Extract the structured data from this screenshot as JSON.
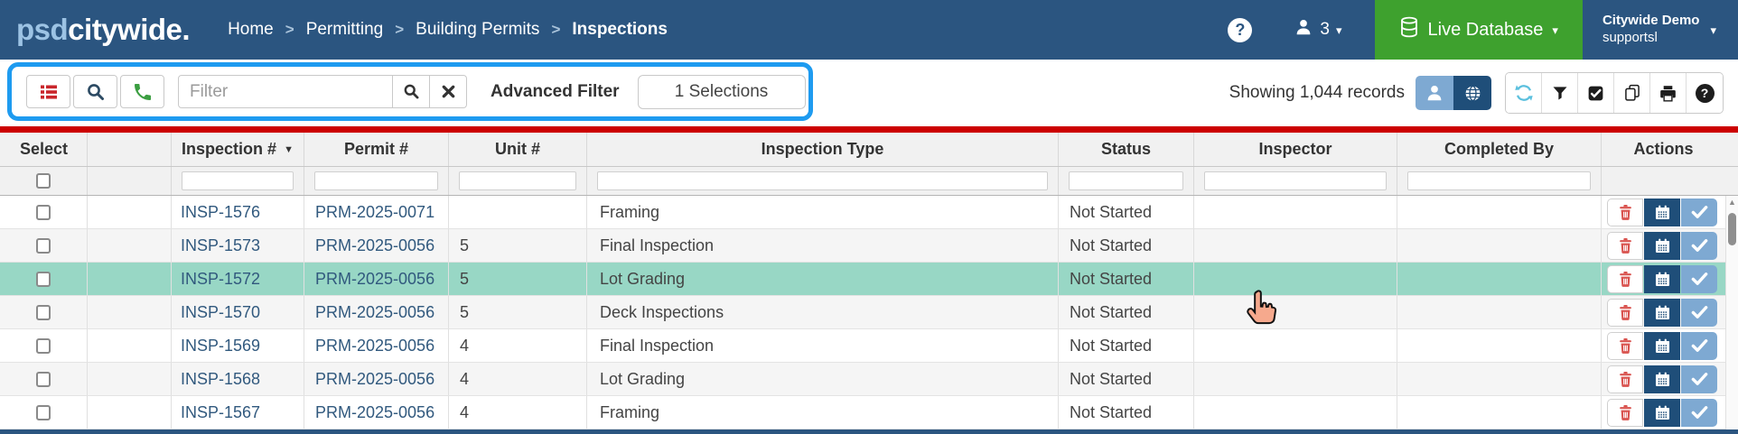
{
  "topbar": {
    "logo": {
      "prefix": "psd",
      "suffix": "citywide",
      "dot": "."
    },
    "breadcrumb": [
      {
        "label": "Home",
        "current": false
      },
      {
        "label": "Permitting",
        "current": false
      },
      {
        "label": "Building Permits",
        "current": false
      },
      {
        "label": "Inspections",
        "current": true
      }
    ],
    "breadcrumb_separator": ">",
    "user_count": "3",
    "database_button": {
      "label": "Live Database"
    },
    "user_menu": {
      "name": "Citywide Demo",
      "subtitle": "supportsl"
    }
  },
  "toolbar": {
    "filter_input": {
      "value": "",
      "placeholder": "Filter"
    },
    "advanced_filter_label": "Advanced Filter",
    "selections_button": "1 Selections",
    "records_summary": "Showing 1,044 records"
  },
  "table": {
    "columns": [
      {
        "id": "select",
        "label": "Select"
      },
      {
        "id": "expand",
        "label": ""
      },
      {
        "id": "inspection",
        "label": "Inspection #",
        "sorted": "desc"
      },
      {
        "id": "permit",
        "label": "Permit #"
      },
      {
        "id": "unit",
        "label": "Unit #"
      },
      {
        "id": "type",
        "label": "Inspection Type"
      },
      {
        "id": "status",
        "label": "Status"
      },
      {
        "id": "inspector",
        "label": "Inspector"
      },
      {
        "id": "completed",
        "label": "Completed By"
      },
      {
        "id": "actions",
        "label": "Actions"
      }
    ],
    "filterable_columns": [
      "inspection",
      "permit",
      "unit",
      "type",
      "status",
      "inspector",
      "completed"
    ],
    "rows": [
      {
        "inspection": "INSP-1576",
        "permit": "PRM-2025-0071",
        "unit": "",
        "type": "Framing",
        "status": "Not Started",
        "inspector": "",
        "completed": "",
        "selected": false
      },
      {
        "inspection": "INSP-1573",
        "permit": "PRM-2025-0056",
        "unit": "5",
        "type": "Final Inspection",
        "status": "Not Started",
        "inspector": "",
        "completed": "",
        "selected": false
      },
      {
        "inspection": "INSP-1572",
        "permit": "PRM-2025-0056",
        "unit": "5",
        "type": "Lot Grading",
        "status": "Not Started",
        "inspector": "",
        "completed": "",
        "selected": true
      },
      {
        "inspection": "INSP-1570",
        "permit": "PRM-2025-0056",
        "unit": "5",
        "type": "Deck Inspections",
        "status": "Not Started",
        "inspector": "",
        "completed": "",
        "selected": false
      },
      {
        "inspection": "INSP-1569",
        "permit": "PRM-2025-0056",
        "unit": "4",
        "type": "Final Inspection",
        "status": "Not Started",
        "inspector": "",
        "completed": "",
        "selected": false
      },
      {
        "inspection": "INSP-1568",
        "permit": "PRM-2025-0056",
        "unit": "4",
        "type": "Lot Grading",
        "status": "Not Started",
        "inspector": "",
        "completed": "",
        "selected": false
      },
      {
        "inspection": "INSP-1567",
        "permit": "PRM-2025-0056",
        "unit": "4",
        "type": "Framing",
        "status": "Not Started",
        "inspector": "",
        "completed": "",
        "selected": false
      }
    ]
  },
  "icons": {
    "sort_desc": "▼",
    "caret_down": "▾",
    "scroll_up": "▲",
    "help": "?",
    "list": "list-bars",
    "search": "magnifier",
    "phone": "phone-handset",
    "clear": "x-cross",
    "database": "db-cylinder",
    "users": "person-silhouette",
    "globe": "globe",
    "refresh": "sync-arrows",
    "filter": "funnel",
    "select_records": "check-square",
    "copy": "pages",
    "print": "printer",
    "delete": "trash-can",
    "schedule": "calendar",
    "complete": "checkmark",
    "cursor": "hand-pointer"
  },
  "colors": {
    "topbar_navy": "#2b5580",
    "live_database_green": "#3ea12e",
    "highlight_blue": "#1e9bf0",
    "table_top_border_red": "#cc0000",
    "selected_row_teal": "#98d7c5",
    "link_blue": "#31597e",
    "action_navy": "#1f4e79",
    "action_light_blue": "#7ea9d2",
    "danger_red": "#d9534f",
    "refresh_cyan": "#5bc0de"
  }
}
